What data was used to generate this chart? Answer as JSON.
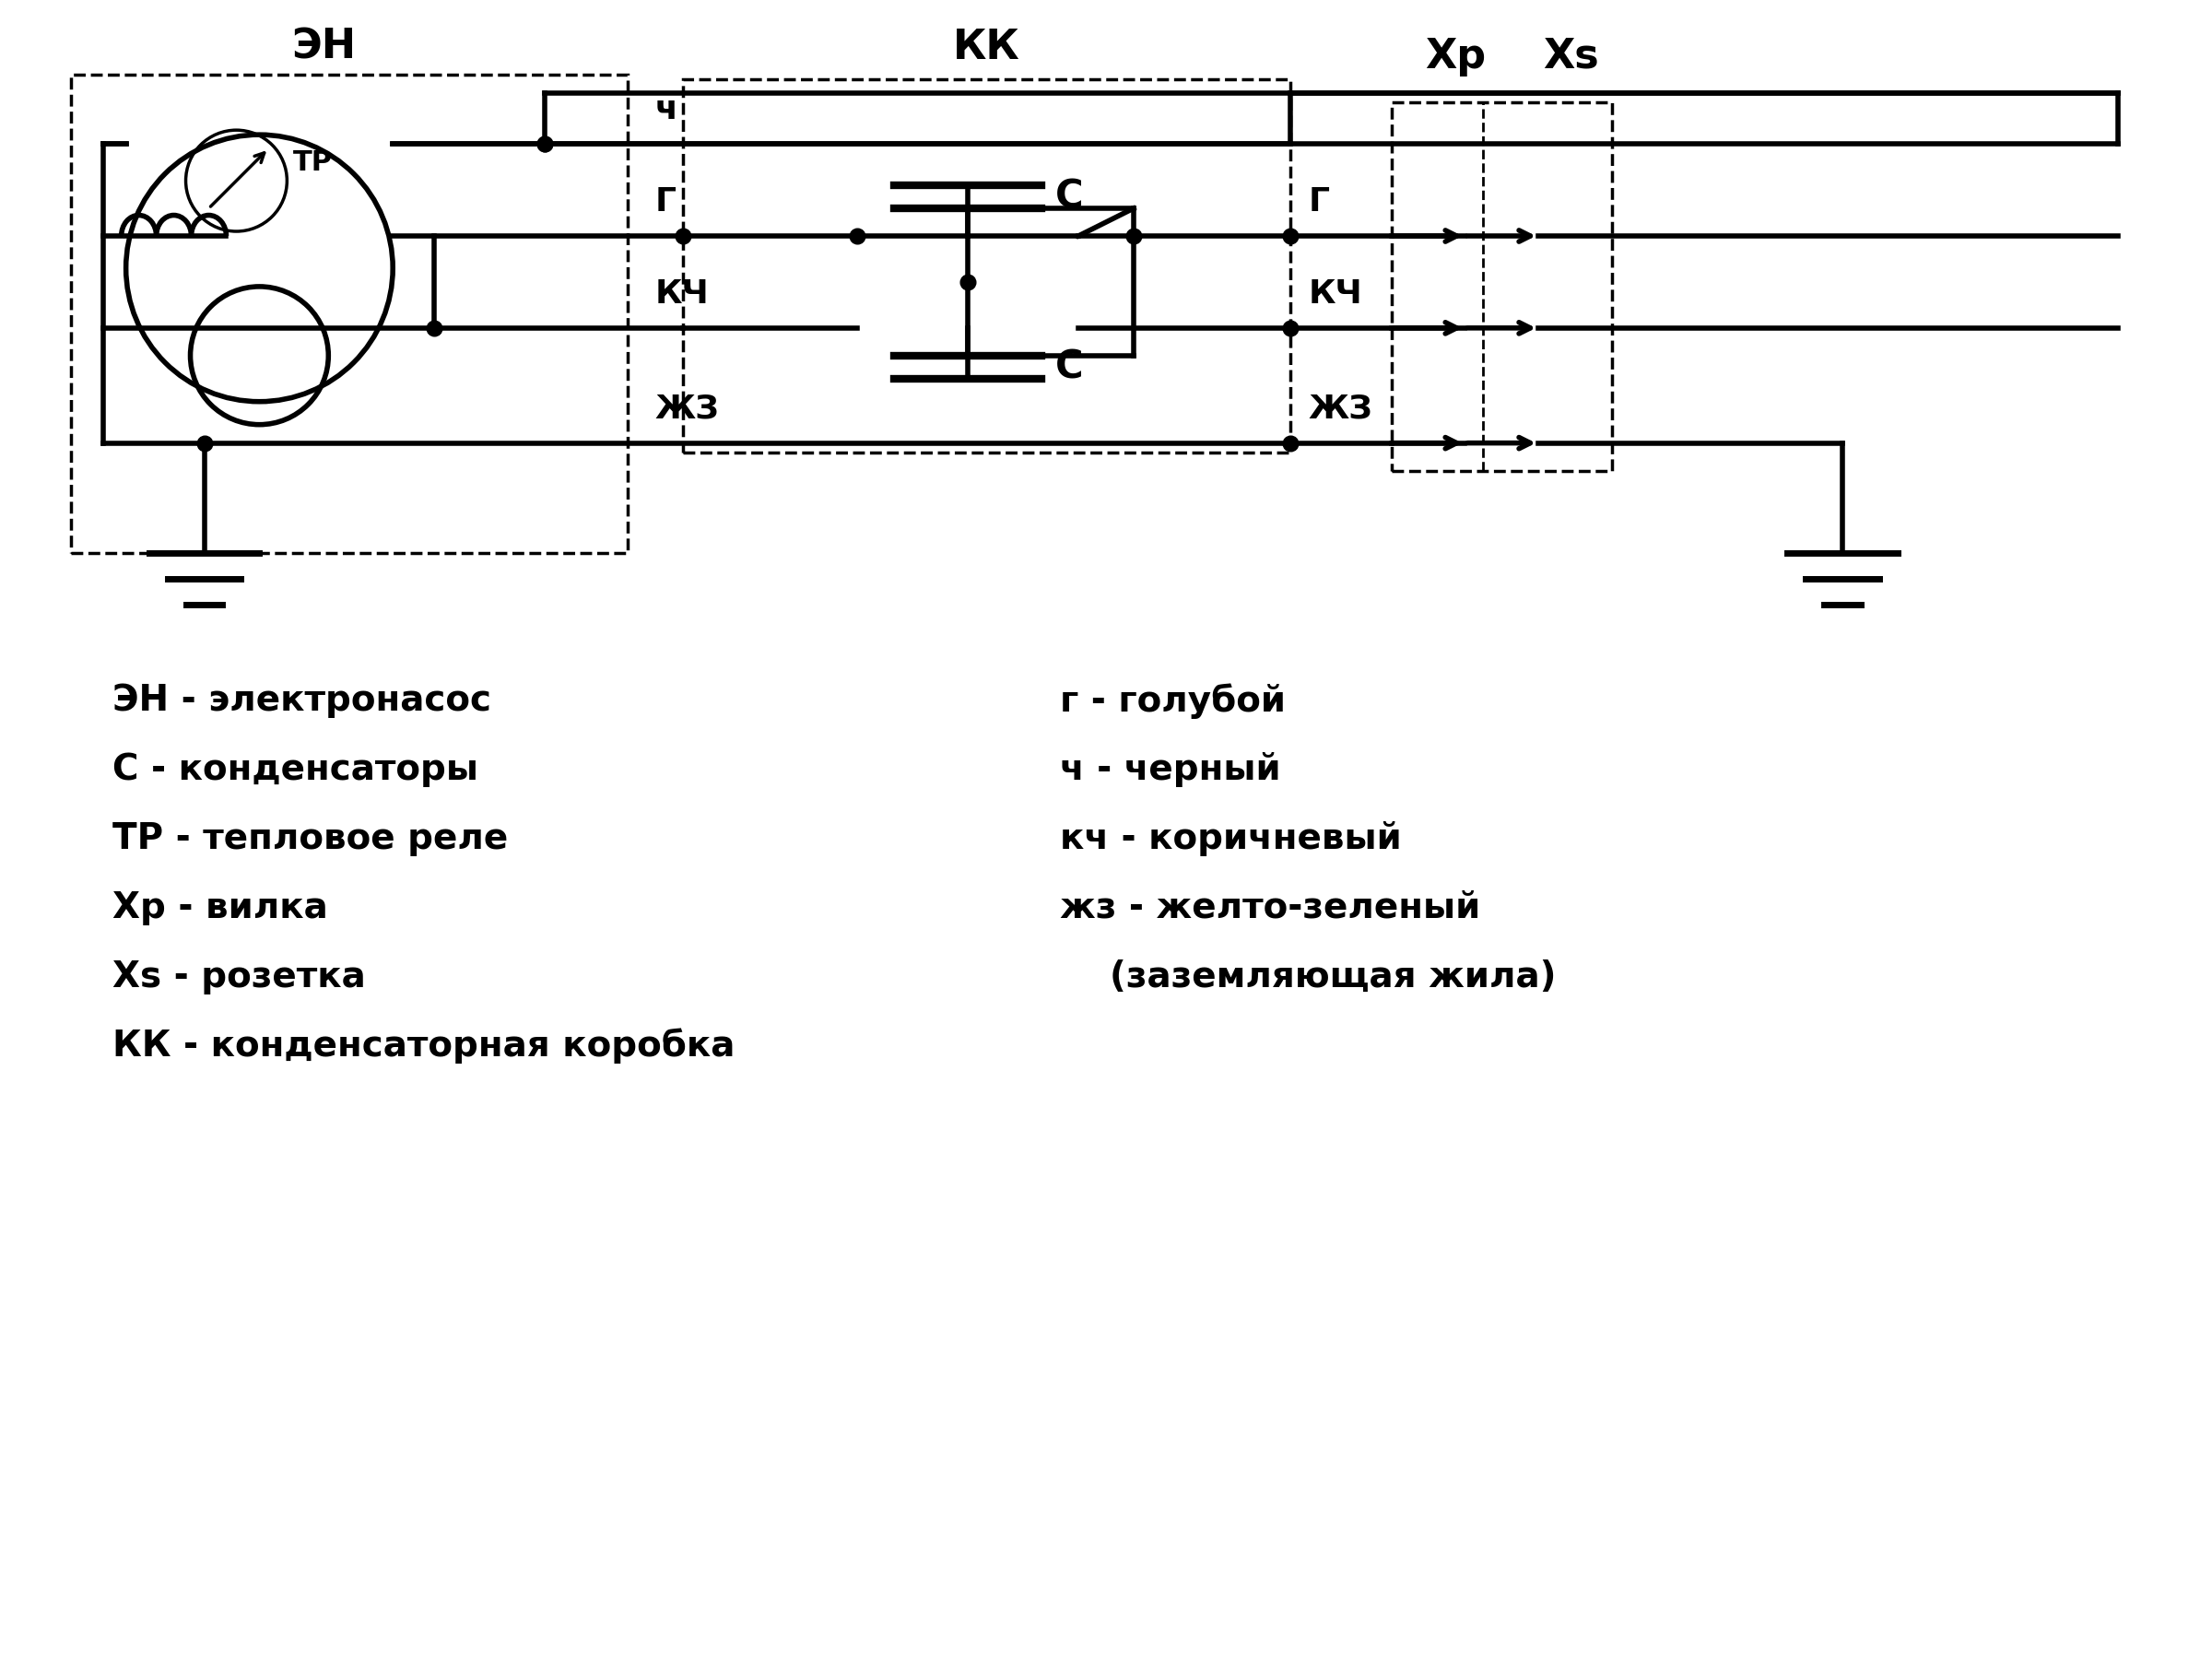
{
  "bg_color": "#ffffff",
  "line_color": "#000000",
  "lw": 4.0,
  "lw_thin": 2.5,
  "legend_left": [
    "ЭН - электронасос",
    "С - конденсаторы",
    "ТР - тепловое реле",
    "Хр - вилка",
    "Xs - розетка",
    "КК - конденсаторная коробка"
  ],
  "legend_right": [
    "г - голубой",
    "ч - черный",
    "кч - коричневый",
    "жз - желто-зеленый",
    "    (заземляющая жила)"
  ]
}
